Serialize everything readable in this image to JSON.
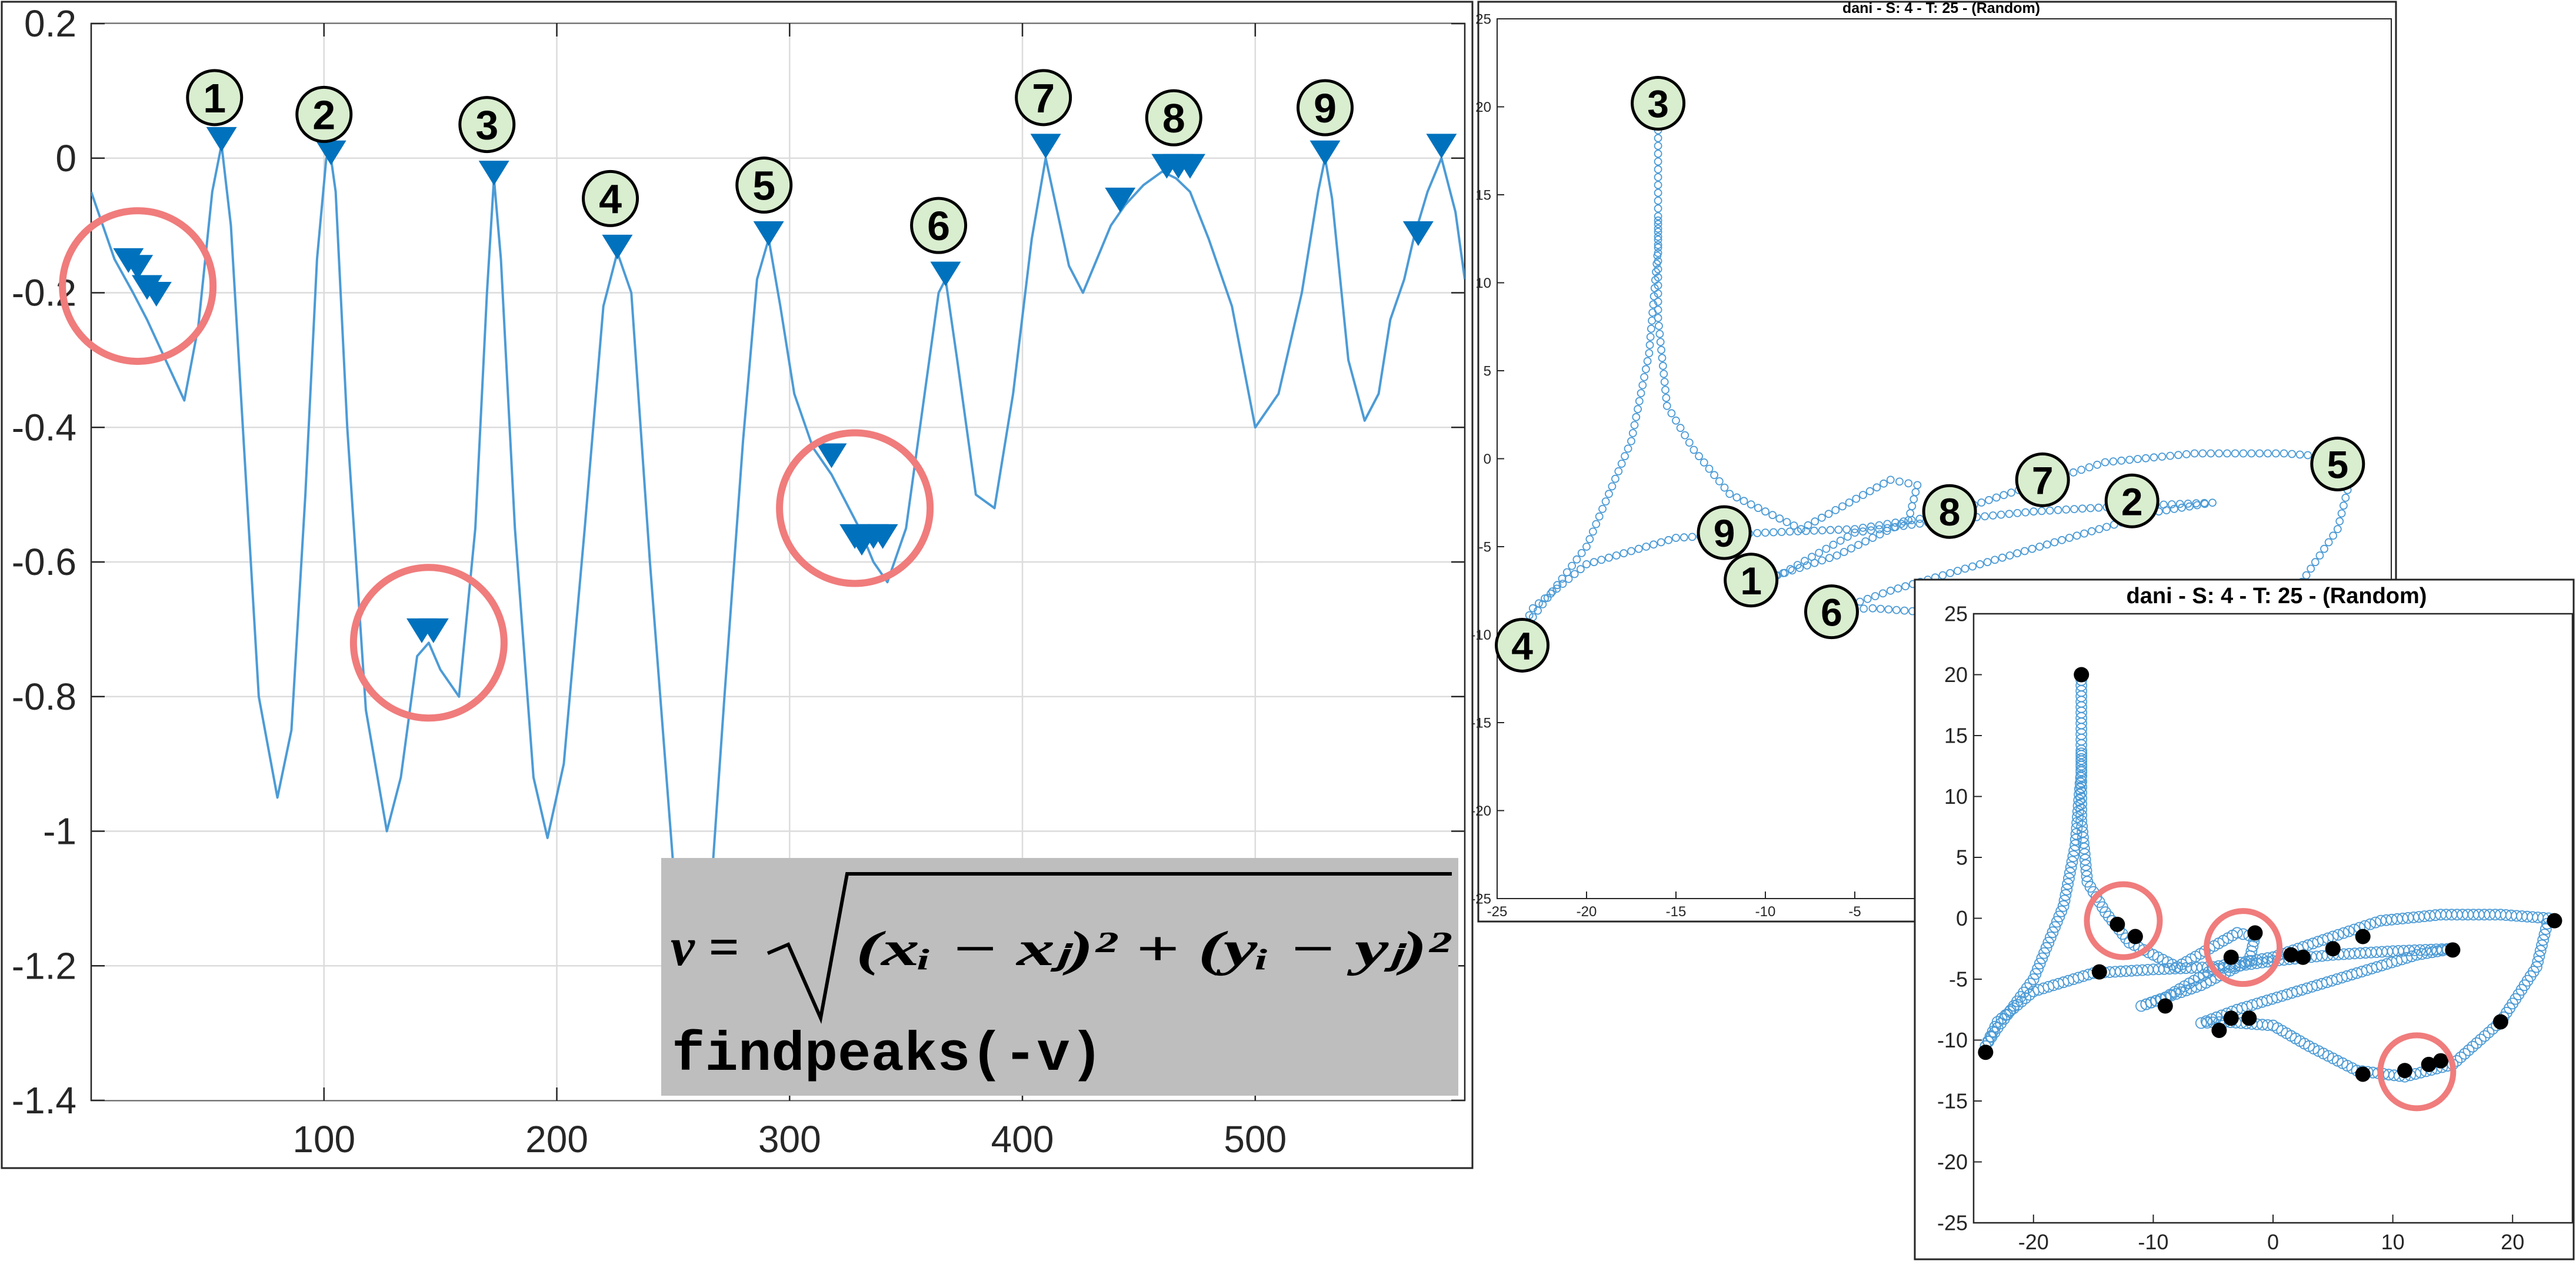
{
  "accent_color": "#0072BD",
  "line_color": "#4C9BD6",
  "highlight_circle_color": "#F07C7C",
  "number_badge_fill": "#D9EDCF",
  "formula_box_color": "#BEBEBE",
  "formula": {
    "lhs": "v =",
    "radicand": "(xᵢ − xⱼ)² + (yᵢ − yⱼ)²",
    "code": "findpeaks(-v)"
  },
  "chart_data": [
    {
      "type": "line",
      "title": "",
      "xlabel": "",
      "ylabel": "",
      "xlim": [
        0,
        590
      ],
      "ylim": [
        -1.4,
        0.2
      ],
      "grid": true,
      "x_ticks": [
        "100",
        "200",
        "300",
        "400",
        "500"
      ],
      "y_ticks": [
        "0.2",
        "0",
        "-0.2",
        "-0.4",
        "-0.6",
        "-0.8",
        "-1",
        "-1.2",
        "-1.4"
      ],
      "series": [
        {
          "x": [
            0,
            10,
            18,
            24,
            32,
            40,
            46,
            52,
            56,
            60,
            66,
            72,
            80,
            86,
            92,
            97,
            101,
            103,
            105,
            110,
            118,
            127,
            133,
            140,
            145,
            150,
            158,
            165,
            170,
            173,
            176,
            182,
            190,
            196,
            203,
            212,
            220,
            226,
            232,
            240,
            250,
            258,
            265,
            272,
            280,
            286,
            291,
            296,
            302,
            310,
            318,
            324,
            330,
            336,
            342,
            350,
            358,
            364,
            367,
            372,
            380,
            388,
            396,
            404,
            410,
            415,
            420,
            426,
            432,
            438,
            444,
            452,
            460,
            466,
            472,
            480,
            490,
            500,
            510,
            520,
            527,
            530,
            533,
            540,
            547,
            553,
            558,
            564,
            568,
            574,
            580,
            586,
            590
          ],
          "y": [
            -0.05,
            -0.15,
            -0.2,
            -0.24,
            -0.3,
            -0.36,
            -0.25,
            -0.05,
            0.02,
            -0.1,
            -0.45,
            -0.8,
            -0.95,
            -0.85,
            -0.5,
            -0.15,
            0.0,
            0.0,
            -0.05,
            -0.4,
            -0.82,
            -1.0,
            -0.92,
            -0.74,
            -0.72,
            -0.76,
            -0.8,
            -0.55,
            -0.2,
            -0.03,
            -0.15,
            -0.55,
            -0.92,
            -1.01,
            -0.9,
            -0.55,
            -0.22,
            -0.14,
            -0.2,
            -0.6,
            -1.05,
            -1.22,
            -1.15,
            -0.8,
            -0.42,
            -0.18,
            -0.12,
            -0.22,
            -0.35,
            -0.43,
            -0.47,
            -0.51,
            -0.55,
            -0.6,
            -0.63,
            -0.55,
            -0.35,
            -0.2,
            -0.18,
            -0.3,
            -0.5,
            -0.52,
            -0.35,
            -0.12,
            0.0,
            -0.08,
            -0.16,
            -0.2,
            -0.15,
            -0.1,
            -0.07,
            -0.04,
            -0.02,
            -0.03,
            -0.05,
            -0.12,
            -0.22,
            -0.4,
            -0.35,
            -0.2,
            -0.05,
            0.0,
            -0.06,
            -0.3,
            -0.39,
            -0.35,
            -0.24,
            -0.18,
            -0.12,
            -0.05,
            0.0,
            -0.08,
            -0.18
          ]
        }
      ],
      "peaks": [
        {
          "x": 16,
          "y": -0.16
        },
        {
          "x": 20,
          "y": -0.17
        },
        {
          "x": 24,
          "y": -0.2
        },
        {
          "x": 28,
          "y": -0.21
        },
        {
          "x": 56,
          "y": 0.02
        },
        {
          "x": 103,
          "y": 0.0
        },
        {
          "x": 142,
          "y": -0.71
        },
        {
          "x": 147,
          "y": -0.71
        },
        {
          "x": 173,
          "y": -0.03
        },
        {
          "x": 226,
          "y": -0.14
        },
        {
          "x": 291,
          "y": -0.12
        },
        {
          "x": 318,
          "y": -0.45
        },
        {
          "x": 328,
          "y": -0.57
        },
        {
          "x": 331,
          "y": -0.58
        },
        {
          "x": 336,
          "y": -0.57
        },
        {
          "x": 340,
          "y": -0.57
        },
        {
          "x": 367,
          "y": -0.18
        },
        {
          "x": 410,
          "y": 0.01
        },
        {
          "x": 442,
          "y": -0.07
        },
        {
          "x": 462,
          "y": -0.02
        },
        {
          "x": 467,
          "y": -0.02
        },
        {
          "x": 472,
          "y": -0.02
        },
        {
          "x": 530,
          "y": 0.0
        },
        {
          "x": 570,
          "y": -0.12
        },
        {
          "x": 580,
          "y": 0.01
        }
      ],
      "labels": [
        {
          "text": "1",
          "x": 53,
          "y": 0.09
        },
        {
          "text": "2",
          "x": 100,
          "y": 0.065
        },
        {
          "text": "3",
          "x": 170,
          "y": 0.05
        },
        {
          "text": "4",
          "x": 223,
          "y": -0.06
        },
        {
          "text": "5",
          "x": 289,
          "y": -0.04
        },
        {
          "text": "6",
          "x": 364,
          "y": -0.1
        },
        {
          "text": "7",
          "x": 409,
          "y": 0.09
        },
        {
          "text": "8",
          "x": 465,
          "y": 0.06
        },
        {
          "text": "9",
          "x": 530,
          "y": 0.075
        }
      ],
      "highlight_circles": [
        {
          "x": 20,
          "y": -0.19
        },
        {
          "x": 145,
          "y": -0.72
        },
        {
          "x": 328,
          "y": -0.52
        }
      ]
    },
    {
      "type": "scatter",
      "title": "dani  -  S: 4  -  T: 25  -  (Random)",
      "xlim": [
        -25,
        25
      ],
      "ylim": [
        -25,
        25
      ],
      "x_ticks": [
        "-25",
        "-20",
        "-15",
        "-10",
        "-5"
      ],
      "y_ticks": [
        "25",
        "20",
        "15",
        "10",
        "5",
        "0",
        "-5",
        "-10",
        "-15",
        "-20",
        "-25"
      ],
      "trajectory_marker": "open-circle",
      "labels": [
        {
          "text": "3",
          "x": -16,
          "y": 20.2
        },
        {
          "text": "7",
          "x": 5.5,
          "y": -1.2
        },
        {
          "text": "5",
          "x": 22,
          "y": -0.3
        },
        {
          "text": "2",
          "x": 10.5,
          "y": -2.4
        },
        {
          "text": "8",
          "x": 0.3,
          "y": -3.0
        },
        {
          "text": "9",
          "x": -12.3,
          "y": -4.2
        },
        {
          "text": "1",
          "x": -10.8,
          "y": -6.9
        },
        {
          "text": "6",
          "x": -6.3,
          "y": -8.7
        },
        {
          "text": "4",
          "x": -23.6,
          "y": -10.6
        }
      ]
    },
    {
      "type": "scatter",
      "title": "dani  -  S: 4  -  T: 25  -  (Random)",
      "xlim": [
        -25,
        25
      ],
      "ylim": [
        -25,
        25
      ],
      "x_ticks": [
        "-20",
        "-10",
        "0",
        "10",
        "20"
      ],
      "y_ticks": [
        "25",
        "20",
        "15",
        "10",
        "5",
        "0",
        "-5",
        "-10",
        "-15",
        "-20",
        "-25"
      ],
      "trajectory_marker": "open-circle",
      "peak_points": [
        {
          "x": -16,
          "y": 20
        },
        {
          "x": -13,
          "y": -0.5
        },
        {
          "x": -11.5,
          "y": -1.5
        },
        {
          "x": -3.5,
          "y": -3.2
        },
        {
          "x": -1.5,
          "y": -1.2
        },
        {
          "x": 1.5,
          "y": -3.0
        },
        {
          "x": 2.5,
          "y": -3.2
        },
        {
          "x": 5,
          "y": -2.5
        },
        {
          "x": 7.5,
          "y": -1.5
        },
        {
          "x": 15,
          "y": -2.6
        },
        {
          "x": 23.5,
          "y": -0.2
        },
        {
          "x": 19,
          "y": -8.5
        },
        {
          "x": 7.5,
          "y": -12.8
        },
        {
          "x": 11,
          "y": -12.5
        },
        {
          "x": 13,
          "y": -12
        },
        {
          "x": 14,
          "y": -11.7
        },
        {
          "x": -4.5,
          "y": -9.2
        },
        {
          "x": -3.5,
          "y": -8.2
        },
        {
          "x": -2,
          "y": -8.2
        },
        {
          "x": -9,
          "y": -7.2
        },
        {
          "x": -14.5,
          "y": -4.4
        },
        {
          "x": -24,
          "y": -11
        }
      ],
      "highlight_circles": [
        {
          "x": -12.5,
          "y": -0.2
        },
        {
          "x": -2.5,
          "y": -2.4
        },
        {
          "x": 12,
          "y": -12.6
        }
      ]
    }
  ]
}
